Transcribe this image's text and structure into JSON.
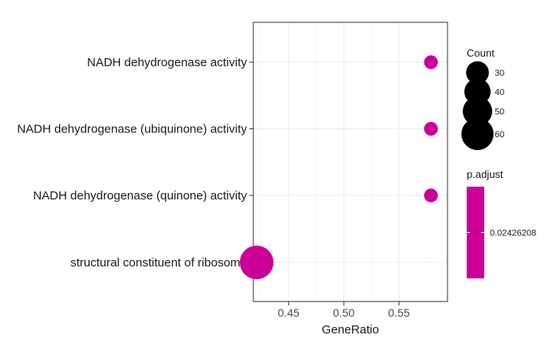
{
  "chart_data": {
    "type": "scatter",
    "xlabel": "GeneRatio",
    "ylabel": "",
    "xlim": [
      0.418,
      0.594
    ],
    "x_ticks": [
      0.45,
      0.5,
      0.55
    ],
    "x_tick_labels": [
      "0.45",
      "0.50",
      "0.55"
    ],
    "x_minor_ticks": [
      0.425,
      0.475,
      0.525,
      0.575
    ],
    "grid": true,
    "categories": [
      "NADH dehydrogenase activity",
      "NADH dehydrogenase (ubiquinone) activity",
      "NADH dehydrogenase (quinone) activity",
      "structural constituent of ribosome"
    ],
    "points": [
      {
        "category": "NADH dehydrogenase activity",
        "gene_ratio": 0.579,
        "count": 11,
        "p_adjust": 0.02426208
      },
      {
        "category": "NADH dehydrogenase (ubiquinone) activity",
        "gene_ratio": 0.579,
        "count": 11,
        "p_adjust": 0.02426208
      },
      {
        "category": "NADH dehydrogenase (quinone) activity",
        "gene_ratio": 0.579,
        "count": 11,
        "p_adjust": 0.02426208
      },
      {
        "category": "structural constituent of ribosome",
        "gene_ratio": 0.421,
        "count": 66,
        "p_adjust": 0.02426208
      }
    ],
    "point_color": "#cc0099",
    "legend_placement": "right",
    "size_legend": {
      "title": "Count",
      "values": [
        30,
        40,
        50,
        60
      ],
      "labels": [
        "30",
        "40",
        "50",
        "60"
      ]
    },
    "color_legend": {
      "title": "p.adjust",
      "labels": [
        "0.02426208"
      ],
      "color": "#cc0099"
    }
  }
}
